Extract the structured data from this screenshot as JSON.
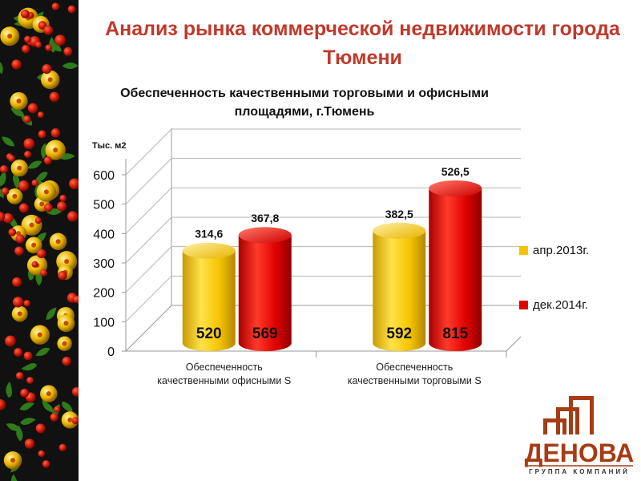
{
  "slide": {
    "title": "Анализ рынка коммерческой недвижимости города Тюмени"
  },
  "logo": {
    "name": "ДЕНОВА",
    "tagline": "ГРУППА КОМПАНИЙ"
  },
  "chart_data": {
    "type": "bar",
    "title": "Обеспеченность качественными торговыми и офисными площадями, г.Тюмень",
    "ylabel": "Тыс. м2",
    "xlabel": "",
    "ylim": [
      0,
      600
    ],
    "yticks": [
      0,
      100,
      200,
      300,
      400,
      500,
      600
    ],
    "categories": [
      "Обеспеченность качественными офисными S",
      "Обеспеченность качественными торговыми S"
    ],
    "series": [
      {
        "name": "апр.2013г.",
        "color": "#f5c400",
        "values": [
          314.6,
          382.5
        ],
        "value_labels": [
          "314,6",
          "382,5"
        ],
        "inner_labels": [
          "520",
          "592"
        ]
      },
      {
        "name": "дек.2014г.",
        "color": "#e00000",
        "values": [
          367.8,
          526.5
        ],
        "value_labels": [
          "367,8",
          "526,5"
        ],
        "inner_labels": [
          "569",
          "815"
        ]
      }
    ],
    "legend_position": "right",
    "grid": true,
    "style": "3d-cylinder"
  }
}
